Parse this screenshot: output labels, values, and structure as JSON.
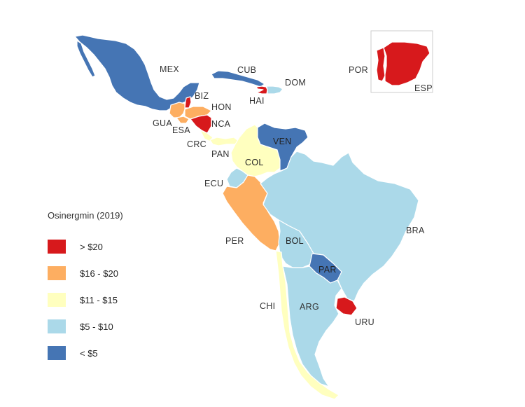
{
  "legend": {
    "title": "Osinergmin (2019)",
    "items": [
      {
        "label": "> $20",
        "color": "#d7191c"
      },
      {
        "label": "$16 - $20",
        "color": "#fdae61"
      },
      {
        "label": "$11 - $15",
        "color": "#ffffbf"
      },
      {
        "label": "$5 - $10",
        "color": "#abd9e9"
      },
      {
        "label": "< $5",
        "color": "#4575b4"
      }
    ]
  },
  "countries": {
    "mex": {
      "label": "MEX",
      "color": "#4575b4"
    },
    "cub": {
      "label": "CUB",
      "color": "#4575b4"
    },
    "dom": {
      "label": "DOM",
      "color": "#abd9e9"
    },
    "hai": {
      "label": "HAI",
      "color": "#d7191c"
    },
    "biz": {
      "label": "BIZ",
      "color": "#d7191c"
    },
    "hon": {
      "label": "HON",
      "color": "#fdae61"
    },
    "gua": {
      "label": "GUA",
      "color": "#fdae61"
    },
    "esa": {
      "label": "ESA",
      "color": "#fdae61"
    },
    "nca": {
      "label": "NCA",
      "color": "#d7191c"
    },
    "crc": {
      "label": "CRC",
      "color": "#ffffbf"
    },
    "pan": {
      "label": "PAN",
      "color": "#ffffbf"
    },
    "col": {
      "label": "COL",
      "color": "#ffffbf"
    },
    "ven": {
      "label": "VEN",
      "color": "#4575b4"
    },
    "ecu": {
      "label": "ECU",
      "color": "#abd9e9"
    },
    "per": {
      "label": "PER",
      "color": "#fdae61"
    },
    "bra": {
      "label": "BRA",
      "color": "#abd9e9"
    },
    "bol": {
      "label": "BOL",
      "color": "#abd9e9"
    },
    "par": {
      "label": "PAR",
      "color": "#4575b4"
    },
    "chi": {
      "label": "CHI",
      "color": "#ffffbf"
    },
    "arg": {
      "label": "ARG",
      "color": "#abd9e9"
    },
    "uru": {
      "label": "URU",
      "color": "#d7191c"
    },
    "por": {
      "label": "POR",
      "color": "#d7191c"
    },
    "esp": {
      "label": "ESP",
      "color": "#d7191c"
    }
  }
}
